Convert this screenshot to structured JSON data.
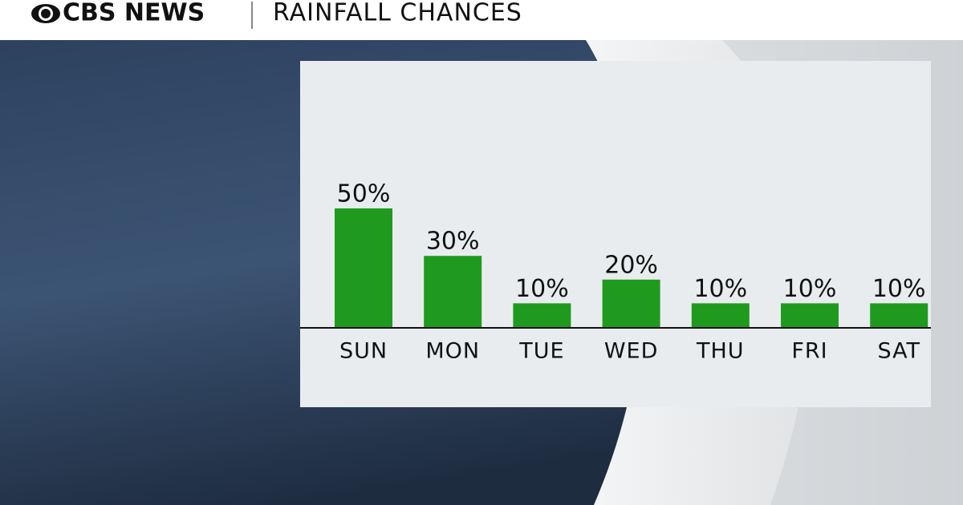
{
  "header": {
    "brand": "CBS NEWS"
  },
  "chart_data": {
    "type": "bar",
    "title": "RAINFALL CHANCES",
    "categories": [
      "SUN",
      "MON",
      "TUE",
      "WED",
      "THU",
      "FRI",
      "SAT"
    ],
    "values": [
      50,
      30,
      10,
      20,
      10,
      10,
      10
    ],
    "value_labels": [
      "50%",
      "30%",
      "10%",
      "20%",
      "10%",
      "10%",
      "10%"
    ],
    "color": "#1f9a1f"
  }
}
